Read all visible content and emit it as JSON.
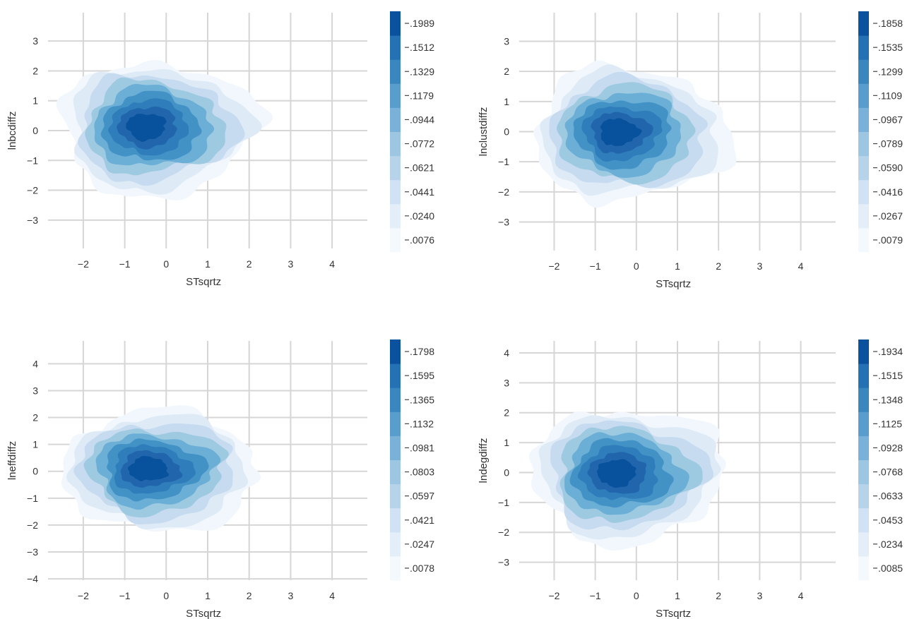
{
  "palette": [
    "#f2f7fd",
    "#deebf7",
    "#c6dbef",
    "#9ecae1",
    "#6baed6",
    "#4292c6",
    "#2f7dbb",
    "#2166ac",
    "#08519c"
  ],
  "chart_data": [
    {
      "type": "contour",
      "xlabel": "STsqrtz",
      "ylabel": "lnbcdiffz",
      "xticks": [
        -2,
        -1,
        0,
        1,
        2,
        3,
        4
      ],
      "yticks": [
        -3,
        -2,
        -1,
        0,
        1,
        2,
        3
      ],
      "xlim": [
        -2.85,
        4.85
      ],
      "ylim": [
        -3.95,
        3.95
      ],
      "grid": true,
      "density_center": {
        "x": -0.55,
        "y": 0.15
      },
      "colorbar_levels": [
        ".0076",
        ".0240",
        ".0441",
        ".0621",
        ".0772",
        ".0944",
        ".1179",
        ".1329",
        ".1512",
        ".1989"
      ]
    },
    {
      "type": "contour",
      "xlabel": "STsqrtz",
      "ylabel": "lnclustdiffz",
      "xticks": [
        -2,
        -1,
        0,
        1,
        2,
        3,
        4
      ],
      "yticks": [
        -3,
        -2,
        -1,
        0,
        1,
        2,
        3
      ],
      "xlim": [
        -2.85,
        4.85
      ],
      "ylim": [
        -3.95,
        3.95
      ],
      "grid": true,
      "density_center": {
        "x": -0.5,
        "y": 0.0
      },
      "colorbar_levels": [
        ".0079",
        ".0267",
        ".0416",
        ".0590",
        ".0789",
        ".0967",
        ".1109",
        ".1299",
        ".1535",
        ".1858"
      ]
    },
    {
      "type": "contour",
      "xlabel": "STsqrtz",
      "ylabel": "lneffdiffz",
      "xticks": [
        -2,
        -1,
        0,
        1,
        2,
        3,
        4
      ],
      "yticks": [
        -4,
        -3,
        -2,
        -1,
        0,
        1,
        2,
        3,
        4
      ],
      "xlim": [
        -2.85,
        4.85
      ],
      "ylim": [
        -4.05,
        4.85
      ],
      "grid": true,
      "density_center": {
        "x": -0.5,
        "y": 0.1
      },
      "colorbar_levels": [
        ".0078",
        ".0247",
        ".0421",
        ".0597",
        ".0803",
        ".0981",
        ".1132",
        ".1365",
        ".1595",
        ".1798"
      ]
    },
    {
      "type": "contour",
      "xlabel": "STsqrtz",
      "ylabel": "lndegdiffz",
      "xticks": [
        -2,
        -1,
        0,
        1,
        2,
        3,
        4
      ],
      "yticks": [
        -3,
        -2,
        -1,
        0,
        1,
        2,
        3,
        4
      ],
      "xlim": [
        -2.85,
        4.85
      ],
      "ylim": [
        -3.6,
        4.4
      ],
      "grid": true,
      "density_center": {
        "x": -0.55,
        "y": 0.0
      },
      "colorbar_levels": [
        ".0085",
        ".0234",
        ".0453",
        ".0633",
        ".0768",
        ".0928",
        ".1125",
        ".1348",
        ".1515",
        ".1934"
      ]
    }
  ]
}
